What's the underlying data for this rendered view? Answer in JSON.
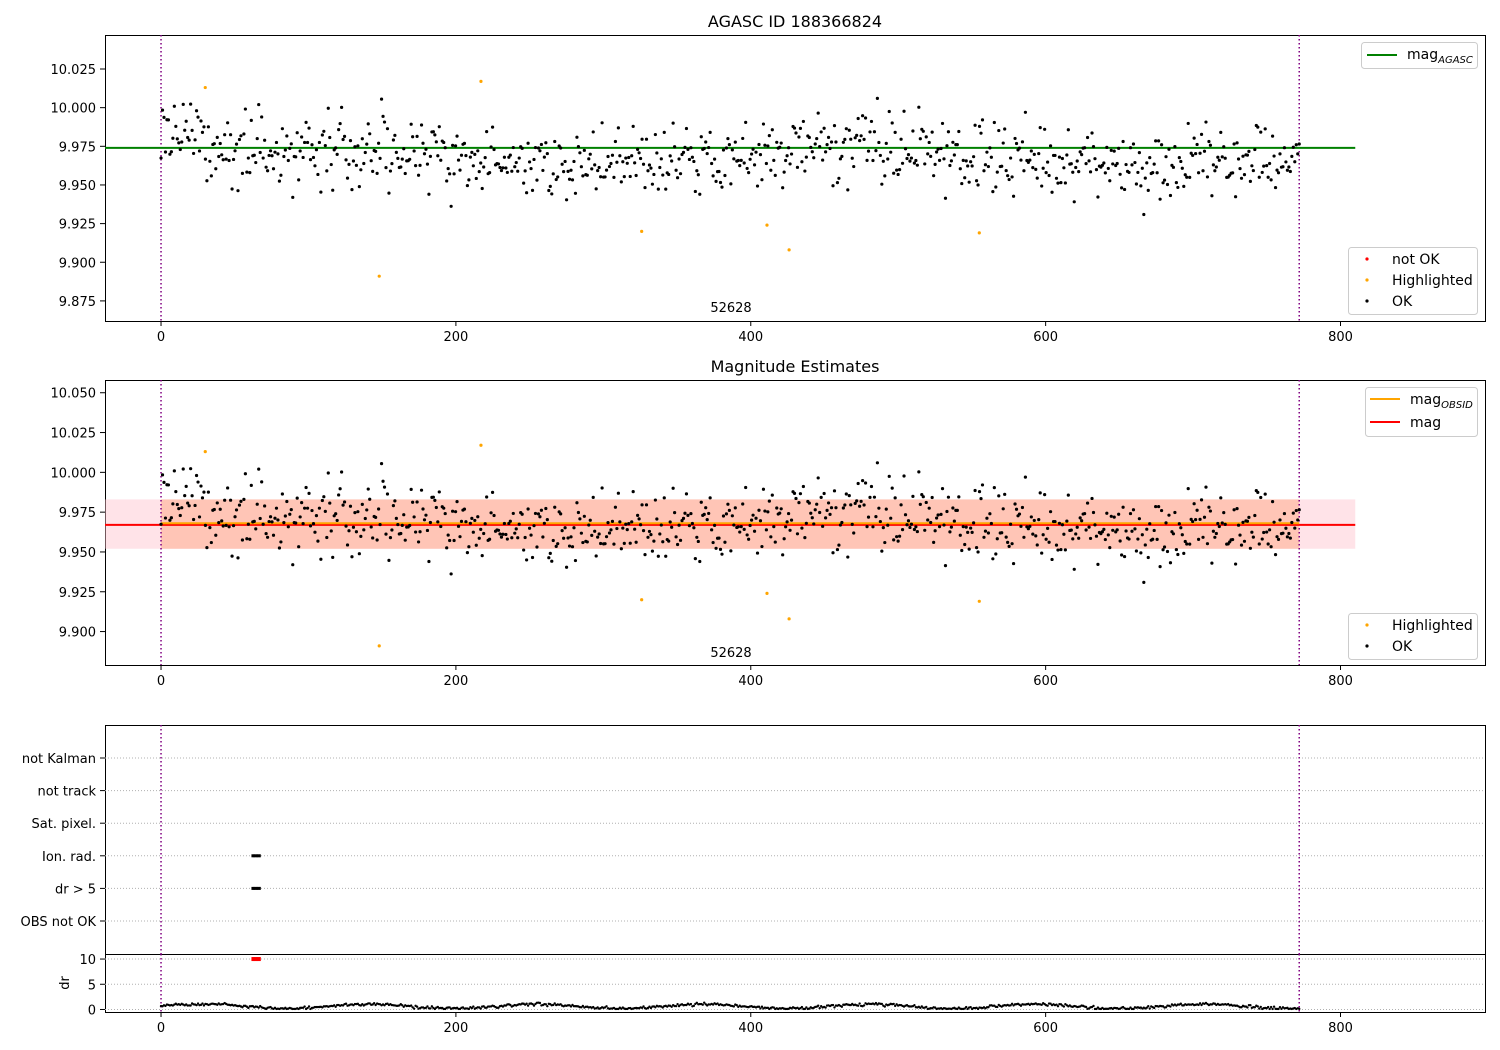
{
  "chart_data": [
    {
      "type": "scatter",
      "title": "AGASC ID 188366824",
      "xlim": [
        -38,
        898
      ],
      "ylim": [
        9.862,
        10.047
      ],
      "xticks": [
        0,
        200,
        400,
        600,
        800
      ],
      "yticks": [
        9.875,
        9.9,
        9.925,
        9.95,
        9.975,
        10.0,
        10.025
      ],
      "ytick_labels": [
        "9.875",
        "9.900",
        "9.925",
        "9.950",
        "9.975",
        "10.000",
        "10.025"
      ],
      "reference_line": {
        "name": "mag",
        "subscript": "AGASC",
        "y": 9.974,
        "x": [
          -38,
          810
        ],
        "color": "#008000"
      },
      "obs_boundaries": [
        0,
        772
      ],
      "obsid_label": {
        "text": "52628",
        "x": 386
      },
      "series_legend": [
        {
          "name": "not OK",
          "color": "#ff0000"
        },
        {
          "name": "Highlighted",
          "color": "#ffa500"
        },
        {
          "name": "OK",
          "color": "#000000"
        }
      ],
      "ok_points": {
        "count": 770,
        "x_range": [
          0,
          772
        ],
        "y_center": 9.967,
        "y_spread": 0.015,
        "color": "#000000"
      },
      "highlighted_points": [
        {
          "x": 30,
          "y": 10.013
        },
        {
          "x": 148,
          "y": 9.891
        },
        {
          "x": 217,
          "y": 10.017
        },
        {
          "x": 326,
          "y": 9.92
        },
        {
          "x": 411,
          "y": 9.924
        },
        {
          "x": 426,
          "y": 9.908
        },
        {
          "x": 555,
          "y": 9.919
        }
      ]
    },
    {
      "type": "scatter",
      "title": "Magnitude Estimates",
      "xlim": [
        -38,
        898
      ],
      "ylim": [
        9.879,
        10.058
      ],
      "xticks": [
        0,
        200,
        400,
        600,
        800
      ],
      "yticks": [
        9.9,
        9.925,
        9.95,
        9.975,
        10.0,
        10.025,
        10.05
      ],
      "ytick_labels": [
        "9.900",
        "9.925",
        "9.950",
        "9.975",
        "10.000",
        "10.025",
        "10.050"
      ],
      "reference_lines": [
        {
          "name": "mag",
          "subscript": "OBSID",
          "y": 9.968,
          "x": [
            0,
            772
          ],
          "color": "#ffa500",
          "band": [
            9.952,
            9.983
          ],
          "band_color": "#ffa07a"
        },
        {
          "name": "mag",
          "subscript": "",
          "y": 9.967,
          "x": [
            -38,
            810
          ],
          "color": "#ff0000",
          "band": [
            9.952,
            9.983
          ],
          "band_color": "#ffc0cb"
        }
      ],
      "obs_boundaries": [
        0,
        772
      ],
      "obsid_label": {
        "text": "52628",
        "x": 386
      },
      "series_legend": [
        {
          "name": "Highlighted",
          "color": "#ffa500"
        },
        {
          "name": "OK",
          "color": "#000000"
        }
      ]
    },
    {
      "type": "scatter",
      "title": "",
      "xlim": [
        -38,
        898
      ],
      "flag_rows": [
        "not Kalman",
        "not track",
        "Sat. pixel.",
        "Ion. rad.",
        "dr > 5",
        "OBS not OK"
      ],
      "flag_segments": [
        {
          "row": "Ion. rad.",
          "x": [
            62,
            67
          ]
        },
        {
          "row": "dr > 5",
          "x": [
            62,
            67
          ]
        }
      ],
      "obs_boundaries": [
        0,
        772
      ]
    },
    {
      "type": "scatter",
      "title": "",
      "xlim": [
        -38,
        898
      ],
      "ylim": [
        -0.5,
        11
      ],
      "ylabel": "dr",
      "yticks": [
        0,
        5,
        10
      ],
      "ytick_labels": [
        "0",
        "5",
        "10"
      ],
      "xticks": [
        0,
        200,
        400,
        600,
        800
      ],
      "obs_boundaries": [
        0,
        772
      ],
      "dr_points": {
        "count": 770,
        "x_range": [
          0,
          772
        ],
        "y_min": 0.1,
        "y_max": 1.4,
        "color": "#000000"
      },
      "outlier_points": {
        "x": [
          62,
          67
        ],
        "y": 10,
        "color": "#ff0000"
      }
    }
  ]
}
